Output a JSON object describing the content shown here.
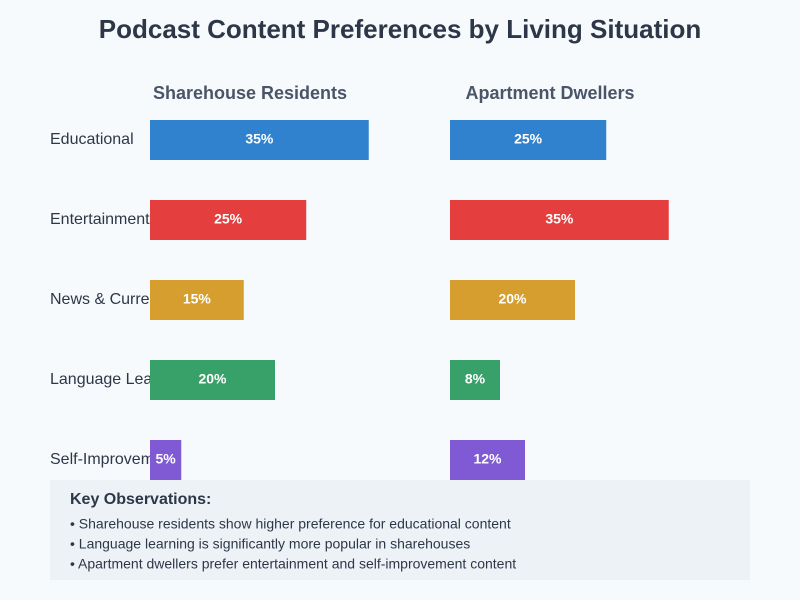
{
  "chart_data": {
    "type": "bar",
    "orientation": "horizontal",
    "title": "Podcast Content Preferences by Living Situation",
    "categories": [
      "Educational",
      "Entertainment",
      "News & Current Affairs",
      "Language Learning",
      "Self-Improvement"
    ],
    "colors": [
      "#3182ce",
      "#e53e3e",
      "#d69e2e",
      "#38a169",
      "#805ad5"
    ],
    "series": [
      {
        "name": "Sharehouse Residents",
        "values": [
          35,
          25,
          15,
          20,
          5
        ],
        "value_labels": [
          "35%",
          "25%",
          "15%",
          "20%",
          "5%"
        ]
      },
      {
        "name": "Apartment Dwellers",
        "values": [
          25,
          35,
          20,
          8,
          12
        ],
        "value_labels": [
          "25%",
          "35%",
          "20%",
          "8%",
          "12%"
        ]
      }
    ]
  },
  "observations": {
    "title": "Key Observations:",
    "items": [
      "• Sharehouse residents show higher preference for educational content",
      "• Language learning is significantly more popular in sharehouses",
      "• Apartment dwellers prefer entertainment and self-improvement content"
    ]
  }
}
